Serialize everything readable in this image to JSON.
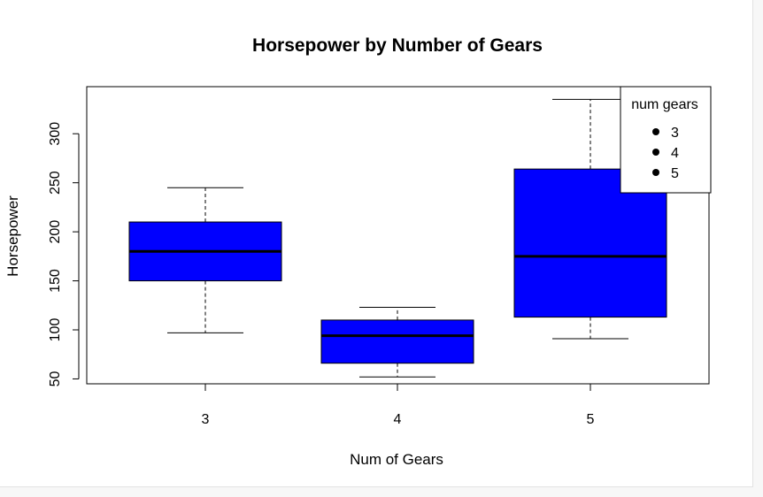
{
  "chart_data": {
    "type": "box",
    "title": "Horsepower by Number of Gears",
    "xlabel": "Num of Gears",
    "ylabel": "Horsepower",
    "categories": [
      "3",
      "4",
      "5"
    ],
    "ylim": [
      45,
      348
    ],
    "yticks": [
      50,
      100,
      150,
      200,
      250,
      300
    ],
    "fill_color": "#0000ff",
    "boxes": [
      {
        "category": "3",
        "min": 97,
        "q1": 150,
        "median": 180,
        "q3": 210,
        "max": 245
      },
      {
        "category": "4",
        "min": 52,
        "q1": 66,
        "median": 94,
        "q3": 110,
        "max": 123
      },
      {
        "category": "5",
        "min": 91,
        "q1": 113,
        "median": 175,
        "q3": 264,
        "max": 335
      }
    ],
    "legend": {
      "title": "num gears",
      "position": "top-right",
      "entries": [
        "3",
        "4",
        "5"
      ]
    }
  }
}
